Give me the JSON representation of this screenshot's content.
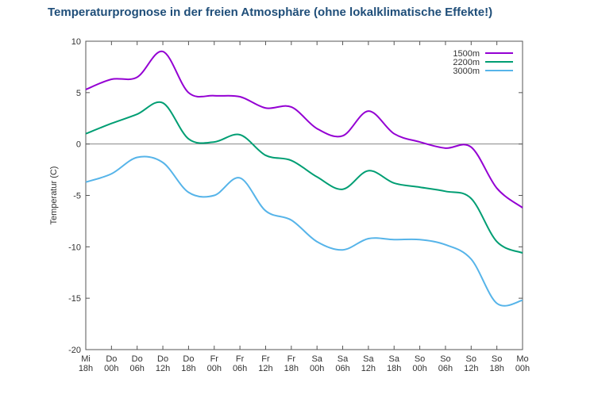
{
  "title": "Temperaturprognose in der freien Atmosphäre (ohne lokalklimatische Effekte!)",
  "chart_data": {
    "type": "line",
    "title": "Temperaturprognose in der freien Atmosphäre (ohne lokalklimatische Effekte!)",
    "ylabel": "Temperatur (C)",
    "xlabel": "",
    "ylim": [
      -20,
      10
    ],
    "yticks": [
      10,
      5,
      0,
      -5,
      -10,
      -15,
      -20
    ],
    "grid": false,
    "zero_line": true,
    "legend_position": "top-right",
    "x_categories": [
      [
        "Mi",
        "18h"
      ],
      [
        "Do",
        "00h"
      ],
      [
        "Do",
        "06h"
      ],
      [
        "Do",
        "12h"
      ],
      [
        "Do",
        "18h"
      ],
      [
        "Fr",
        "00h"
      ],
      [
        "Fr",
        "06h"
      ],
      [
        "Fr",
        "12h"
      ],
      [
        "Fr",
        "18h"
      ],
      [
        "Sa",
        "00h"
      ],
      [
        "Sa",
        "06h"
      ],
      [
        "Sa",
        "12h"
      ],
      [
        "Sa",
        "18h"
      ],
      [
        "So",
        "00h"
      ],
      [
        "So",
        "06h"
      ],
      [
        "So",
        "12h"
      ],
      [
        "So",
        "18h"
      ],
      [
        "Mo",
        "00h"
      ]
    ],
    "series": [
      {
        "name": "1500m",
        "color": "#9400d3",
        "values": [
          5.3,
          6.3,
          6.5,
          9.0,
          5.0,
          4.7,
          4.6,
          3.5,
          3.6,
          1.5,
          0.8,
          3.2,
          1.0,
          0.2,
          -0.4,
          -0.3,
          -4.3,
          -6.2
        ]
      },
      {
        "name": "2200m",
        "color": "#009e73",
        "values": [
          1.0,
          2.0,
          2.9,
          4.0,
          0.5,
          0.2,
          0.9,
          -1.1,
          -1.6,
          -3.2,
          -4.4,
          -2.6,
          -3.8,
          -4.2,
          -4.6,
          -5.3,
          -9.5,
          -10.6
        ]
      },
      {
        "name": "3000m",
        "color": "#56b4e9",
        "values": [
          -3.7,
          -2.9,
          -1.3,
          -1.8,
          -4.7,
          -5.0,
          -3.3,
          -6.5,
          -7.4,
          -9.5,
          -10.3,
          -9.2,
          -9.3,
          -9.3,
          -9.8,
          -11.2,
          -15.5,
          -15.2
        ]
      }
    ]
  }
}
